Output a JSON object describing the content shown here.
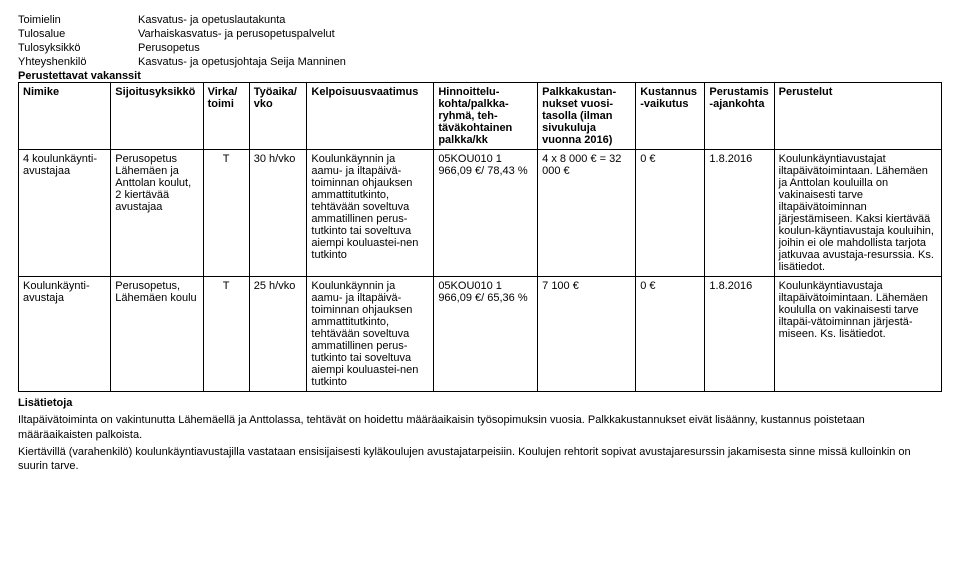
{
  "header": {
    "rows": [
      {
        "label": "Toimielin",
        "value": "Kasvatus- ja opetuslautakunta"
      },
      {
        "label": "Tulosalue",
        "value": "Varhaiskasvatus- ja perusopetuspalvelut"
      },
      {
        "label": "Tulosyksikkö",
        "value": "Perusopetus"
      },
      {
        "label": "Yhteyshenkilö",
        "value": "Kasvatus- ja opetusjohtaja Seija Manninen"
      }
    ],
    "vacancies_label": "Perustettavat vakanssit"
  },
  "columns": [
    "Nimike",
    "Sijoitusyksikkö",
    "Virka/ toimi",
    "Työaika/ vko",
    "Kelpoisuusvaatimus",
    "Hinnoittelu-kohta/palkka-ryhmä, teh-täväkohtainen palkka/kk",
    "Palkkakustan-nukset vuosi-tasolla (ilman sivukuluja vuonna 2016)",
    "Kustannus-vaikutus",
    "Perustamis-ajankohta",
    "Perustelut"
  ],
  "rows": [
    {
      "nimike": "4 koulunkäynti-avustajaa",
      "sijoitus": "Perusopetus Lähemäen ja Anttolan koulut, 2 kiertävää avustajaa",
      "virka": "T",
      "tyoaika": "30 h/vko",
      "kelpo": "Koulunkäynnin ja aamu- ja iltapäivä-toiminnan ohjauksen ammattitutkinto, tehtävään soveltuva ammatillinen perus-tutkinto tai soveltuva aiempi kouluastei-nen tutkinto",
      "hinnoit": "05KOU010 1 966,09 €/ 78,43 %",
      "palkka": "4 x 8 000 € = 32 000 €",
      "kustannus": "0 €",
      "perustamis": "1.8.2016",
      "perustelut": "Koulunkäyntiavustajat iltapäivätoimintaan. Lähemäen ja Anttolan kouluilla on vakinaisesti tarve iltapäivätoiminnan järjestämiseen. Kaksi kiertävää koulun-käyntiavustaja kouluihin, joihin ei ole mahdollista tarjota jatkuvaa avustaja-resurssia. Ks. lisätiedot."
    },
    {
      "nimike": "Koulunkäynti-avustaja",
      "sijoitus": "Perusopetus, Lähemäen koulu",
      "virka": "T",
      "tyoaika": "25 h/vko",
      "kelpo": "Koulunkäynnin ja aamu- ja iltapäivä-toiminnan ohjauksen ammattitutkinto, tehtävään soveltuva ammatillinen perus-tutkinto tai soveltuva aiempi kouluastei-nen tutkinto",
      "hinnoit": "05KOU010 1 966,09 €/ 65,36 %",
      "palkka": "7 100 €",
      "kustannus": "0 €",
      "perustamis": "1.8.2016",
      "perustelut": "Koulunkäyntiavustaja iltapäivätoimintaan. Lähemäen koululla on vakinaisesti tarve iltapäi-vätoiminnan järjestä-miseen. Ks. lisätiedot."
    }
  ],
  "footer": {
    "lead": "Lisätietoja",
    "p1": "Iltapäivätoiminta on vakintunutta Lähemäellä ja Anttolassa, tehtävät on hoidettu määräaikaisin työsopimuksin vuosia. Palkkakustannukset eivät lisäänny, kustannus poistetaan määräaikaisten palkoista.",
    "p2": "Kiertävillä (varahenkilö) koulunkäyntiavustajilla vastataan ensisijaisesti kyläkoulujen avustajatarpeisiin. Koulujen rehtorit sopivat avustajaresurssin jakamisesta sinne missä kulloinkin on suurin tarve."
  }
}
